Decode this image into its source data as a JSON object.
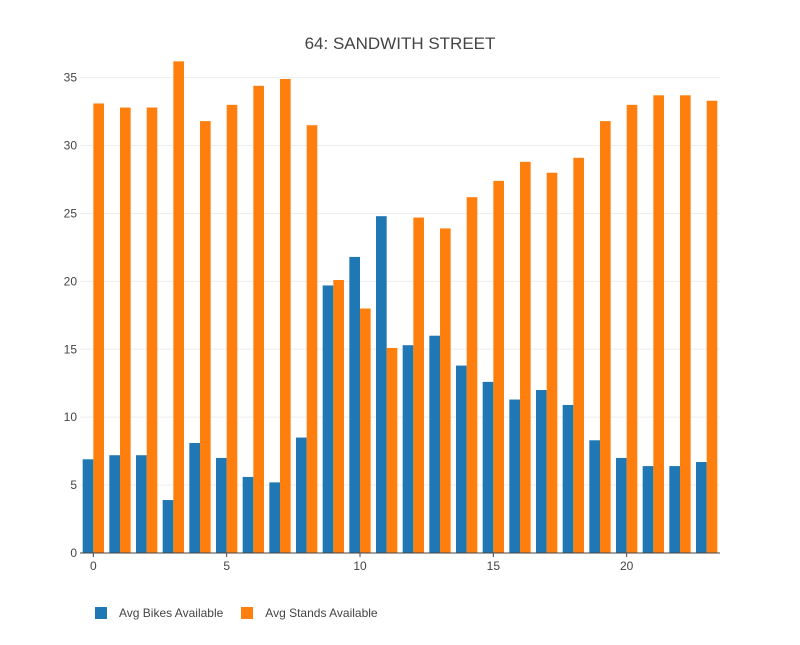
{
  "chart_data": {
    "type": "bar",
    "title": "64: SANDWITH STREET",
    "xlabel": "",
    "ylabel": "",
    "x": [
      0,
      1,
      2,
      3,
      4,
      5,
      6,
      7,
      8,
      9,
      10,
      11,
      12,
      13,
      14,
      15,
      16,
      17,
      18,
      19,
      20,
      21,
      22,
      23
    ],
    "x_ticks": [
      0,
      5,
      10,
      15,
      20
    ],
    "ylim": [
      0,
      36.3
    ],
    "y_ticks": [
      0,
      5,
      10,
      15,
      20,
      25,
      30,
      35
    ],
    "grid": true,
    "legend_position": "bottom-left",
    "series": [
      {
        "name": "Avg Bikes Available",
        "color": "#1f77b4",
        "values": [
          6.9,
          7.2,
          7.2,
          3.9,
          8.1,
          7.0,
          5.6,
          5.2,
          8.5,
          19.7,
          21.8,
          24.8,
          15.3,
          16.0,
          13.8,
          12.6,
          11.3,
          12.0,
          10.9,
          8.3,
          7.0,
          6.4,
          6.4,
          6.7
        ]
      },
      {
        "name": "Avg Stands Available",
        "color": "#ff7f0e",
        "values": [
          33.1,
          32.8,
          32.8,
          36.2,
          31.8,
          33.0,
          34.4,
          34.9,
          31.5,
          20.1,
          18.0,
          15.1,
          24.7,
          23.9,
          26.2,
          27.4,
          28.8,
          28.0,
          29.1,
          31.8,
          33.0,
          33.7,
          33.7,
          33.3
        ]
      }
    ]
  }
}
